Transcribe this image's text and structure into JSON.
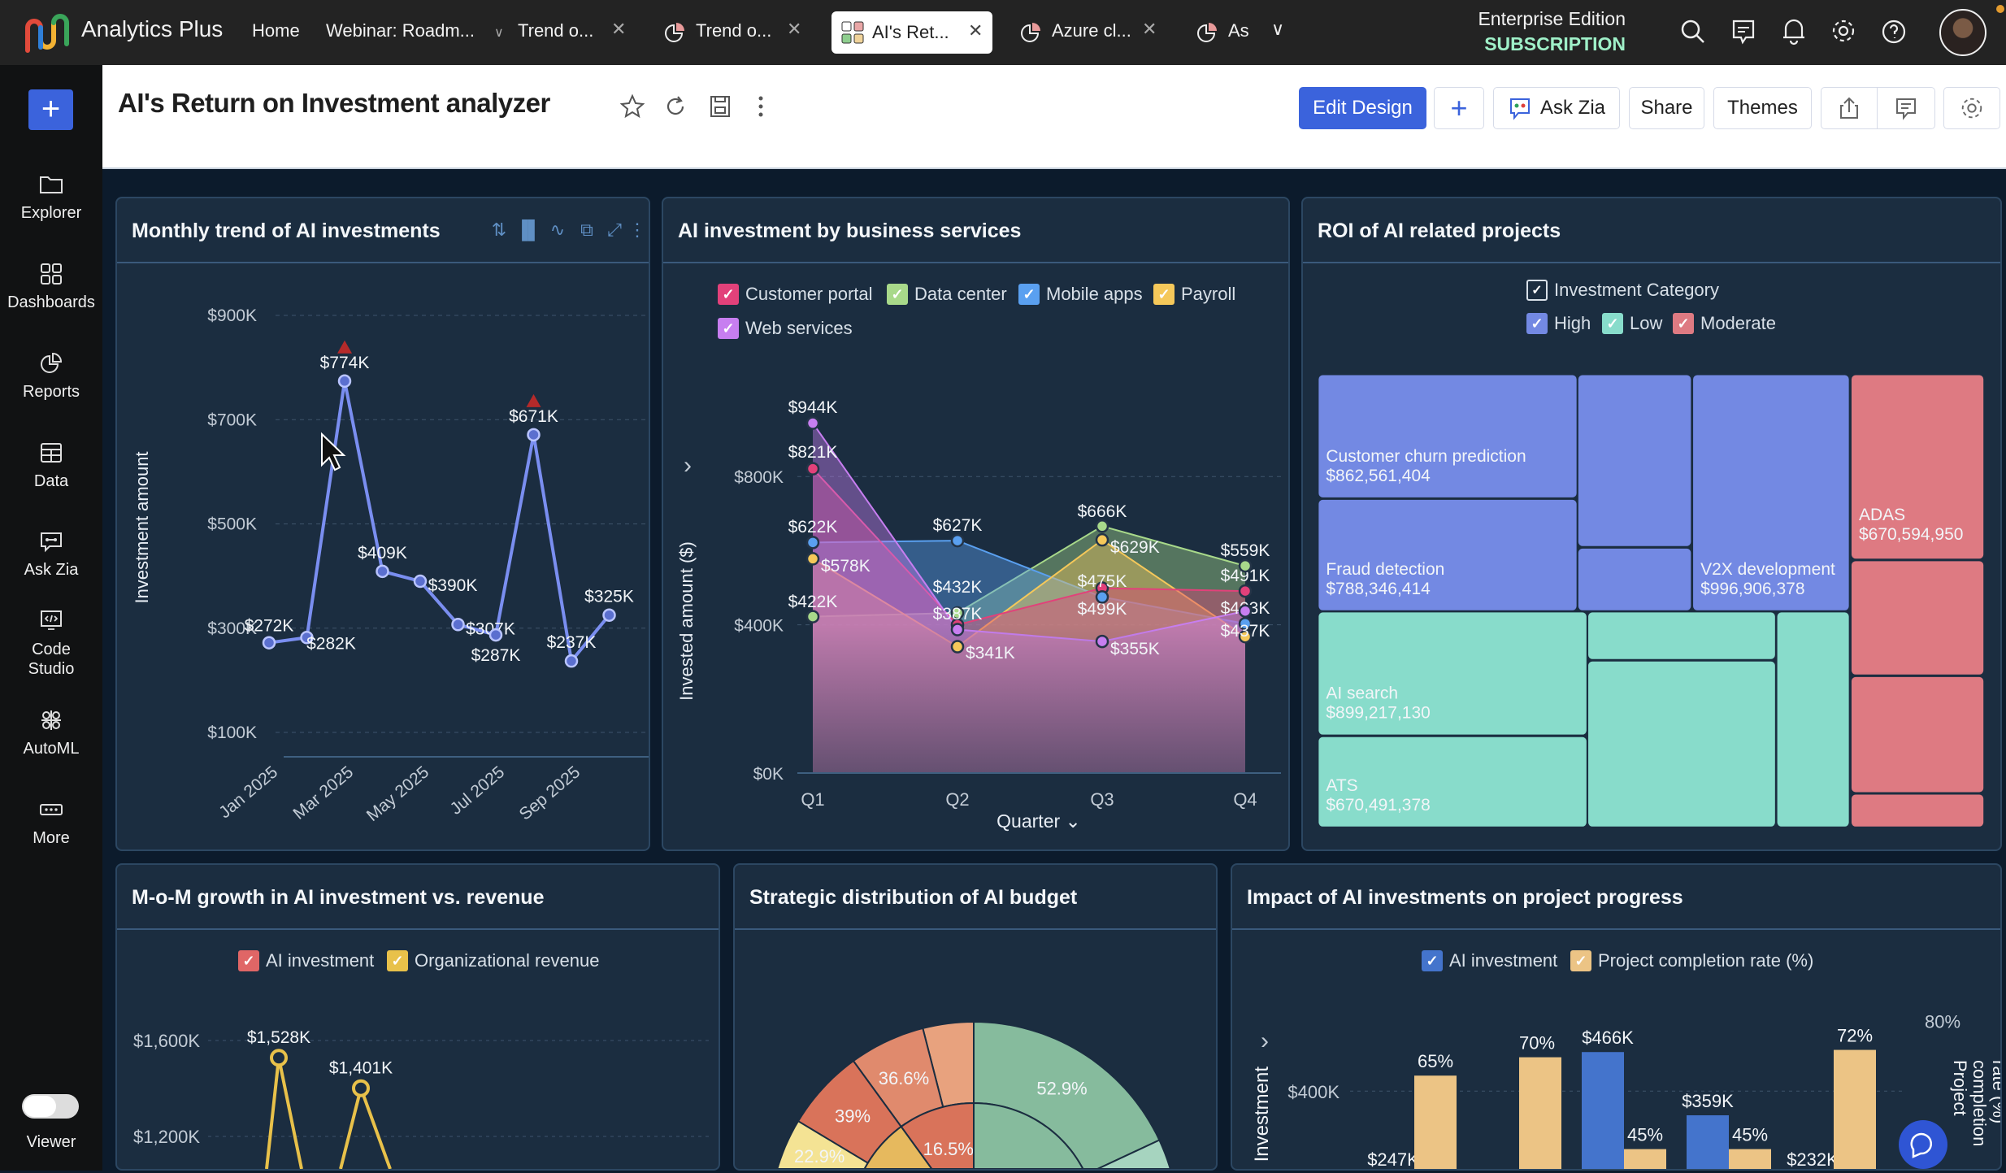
{
  "app": {
    "name": "Analytics Plus"
  },
  "topbar": {
    "home": "Home",
    "tabs": [
      {
        "label": "Webinar: Roadm...",
        "icon": "chevron-down-icon"
      },
      {
        "label": "Trend o...",
        "icon": "none"
      },
      {
        "label": "Trend o...",
        "icon": "pie-chart-icon"
      },
      {
        "label": "AI's Ret...",
        "icon": "dashboard-grid-icon",
        "active": true
      },
      {
        "label": "Azure cl...",
        "icon": "pie-chart-icon"
      },
      {
        "label": "As",
        "icon": "pie-chart-icon"
      }
    ],
    "edition": "Enterprise Edition",
    "subscription": "SUBSCRIPTION",
    "subscription_color": "#9ff0c8"
  },
  "sidebar": {
    "items": [
      {
        "label": "Explorer",
        "icon": "folder-icon"
      },
      {
        "label": "Dashboards",
        "icon": "dashboard-grid-icon"
      },
      {
        "label": "Reports",
        "icon": "pie-chart-icon"
      },
      {
        "label": "Data",
        "icon": "table-icon"
      },
      {
        "label": "Ask Zia",
        "icon": "zia-chat-icon"
      },
      {
        "label": "Code Studio",
        "icon": "code-icon"
      },
      {
        "label": "AutoML",
        "icon": "automl-icon"
      },
      {
        "label": "More",
        "icon": "more-icon"
      }
    ],
    "viewer_label": "Viewer"
  },
  "header": {
    "title": "AI's Return on Investment analyzer",
    "edit_design": "Edit Design",
    "ask_zia": "Ask Zia",
    "share": "Share",
    "themes": "Themes",
    "accent": "#3b63dc"
  },
  "charts": [
    {
      "title": "Monthly trend of AI investments",
      "chart_data": {
        "type": "line",
        "ylabel": "Investment amount",
        "yticks": [
          "$100K",
          "$300K",
          "$500K",
          "$700K",
          "$900K"
        ],
        "ylim": [
          100,
          900
        ],
        "x": [
          "Jan 2025",
          "Feb 2025",
          "Mar 2025",
          "Apr 2025",
          "May 2025",
          "Jun 2025",
          "Jul 2025",
          "Aug 2025",
          "Sep 2025",
          "Oct 2025"
        ],
        "xtick_labels": [
          "Jan 2025",
          "Mar 2025",
          "May 2025",
          "Jul 2025",
          "Sep 2025"
        ],
        "values": [
          272,
          282,
          774,
          409,
          390,
          307,
          287,
          671,
          237,
          325
        ],
        "labels": [
          "$272K",
          "$282K",
          "$774K",
          "$409K",
          "$390K",
          "$307K",
          "$287K",
          "$671K",
          "$237K",
          "$325K"
        ],
        "peak_markers": [
          2,
          7
        ],
        "color": "#7a8ef0",
        "marker_color": "#b52a2a"
      }
    },
    {
      "title": "AI investment by business services",
      "chart_data": {
        "type": "area",
        "categories": [
          "Q1",
          "Q2",
          "Q3",
          "Q4"
        ],
        "xlabel": "Quarter",
        "ylabel": "Invested amount ($)",
        "yticks": [
          "$0K",
          "$400K",
          "$800K"
        ],
        "ylim": [
          0,
          1000
        ],
        "series": [
          {
            "name": "Customer portal",
            "color": "#e2417a",
            "values": [
              821,
              400,
              499,
              491
            ],
            "labels": [
              "$821K",
              null,
              "$499K",
              "$491K"
            ]
          },
          {
            "name": "Data center",
            "color": "#a8d98a",
            "values": [
              422,
              432,
              666,
              559
            ],
            "labels": [
              "$422K",
              "$432K",
              "$666K",
              "$559K"
            ]
          },
          {
            "name": "Mobile apps",
            "color": "#5aa0f0",
            "values": [
              622,
              627,
              475,
              403
            ],
            "labels": [
              "$622K",
              "$627K",
              "$475K",
              "$403K"
            ]
          },
          {
            "name": "Payroll",
            "color": "#f5c85a",
            "values": [
              578,
              341,
              629,
              368
            ],
            "labels": [
              "$578K",
              "$341K",
              "$629K",
              null
            ]
          },
          {
            "name": "Web services",
            "color": "#c77ef0",
            "values": [
              944,
              387,
              355,
              437
            ],
            "labels": [
              "$944K",
              "$387K",
              "$355K",
              "$437K"
            ]
          }
        ]
      }
    },
    {
      "title": "ROI of AI related projects",
      "chart_data": {
        "type": "treemap",
        "legend_title": "Investment Category",
        "categories": [
          {
            "name": "High",
            "color": "#7389e3"
          },
          {
            "name": "Low",
            "color": "#88dccb"
          },
          {
            "name": "Moderate",
            "color": "#de7a82"
          }
        ],
        "nodes": [
          {
            "category": "High",
            "name": "Customer churn prediction",
            "value": "$862,561,404"
          },
          {
            "category": "High",
            "name": "Fraud detection",
            "value": "$788,346,414"
          },
          {
            "category": "High",
            "name": null,
            "value": null
          },
          {
            "category": "High",
            "name": null,
            "value": null
          },
          {
            "category": "High",
            "name": "V2X development",
            "value": "$996,906,378"
          },
          {
            "category": "Low",
            "name": "AI search",
            "value": "$899,217,130"
          },
          {
            "category": "Low",
            "name": "ATS",
            "value": "$670,491,378"
          },
          {
            "category": "Low",
            "name": null,
            "value": null
          },
          {
            "category": "Low",
            "name": null,
            "value": null
          },
          {
            "category": "Low",
            "name": null,
            "value": null
          },
          {
            "category": "Moderate",
            "name": "ADAS",
            "value": "$670,594,950"
          },
          {
            "category": "Moderate",
            "name": null,
            "value": null
          },
          {
            "category": "Moderate",
            "name": null,
            "value": null
          },
          {
            "category": "Moderate",
            "name": null,
            "value": null
          }
        ]
      }
    },
    {
      "title": "M-o-M growth in AI investment vs. revenue",
      "chart_data": {
        "type": "line",
        "yticks": [
          "$1,600K",
          "$1,200K"
        ],
        "series": [
          {
            "name": "AI investment",
            "color": "#e06666",
            "values": []
          },
          {
            "name": "Organizational revenue",
            "color": "#e8c14a",
            "values": [
              1528,
              1401
            ],
            "labels": [
              "$1,528K",
              "$1,401K"
            ]
          }
        ]
      }
    },
    {
      "title": "Strategic distribution of AI budget",
      "chart_data": {
        "type": "sunburst",
        "outer": [
          {
            "label": "52.9%",
            "color": "#86bb9d"
          },
          {
            "label": "",
            "color": "#a6d4bf"
          },
          {
            "label": "",
            "color": "#e8a27e"
          },
          {
            "label": "36.6%",
            "color": "#e08a6d"
          },
          {
            "label": "39%",
            "color": "#d9735a"
          },
          {
            "label": "22.9%",
            "color": "#f4e394"
          }
        ],
        "inner": [
          {
            "label": "16.5%",
            "color": "#d9735a"
          },
          {
            "label": "",
            "color": "#86bb9d"
          },
          {
            "label": "",
            "color": "#e6b95e"
          }
        ]
      }
    },
    {
      "title": "Impact of AI investments on project progress",
      "chart_data": {
        "type": "bar",
        "ylabel": "Investment",
        "y2label": "Project completion rate (%)",
        "yticks": [
          "$400K"
        ],
        "y2ticks": [
          "80%"
        ],
        "series": [
          {
            "name": "AI investment",
            "color": "#4474cc",
            "values": [
              247,
              220,
              466,
              359,
              232
            ],
            "labels": [
              "$247K",
              null,
              "$466K",
              "$359K",
              "$232K"
            ]
          },
          {
            "name": "Project completion rate (%)",
            "color": "#ecc485",
            "values": [
              65,
              70,
              45,
              45,
              72
            ],
            "labels": [
              "65%",
              "70%",
              "45%",
              "45%",
              "72%"
            ]
          }
        ]
      }
    }
  ]
}
